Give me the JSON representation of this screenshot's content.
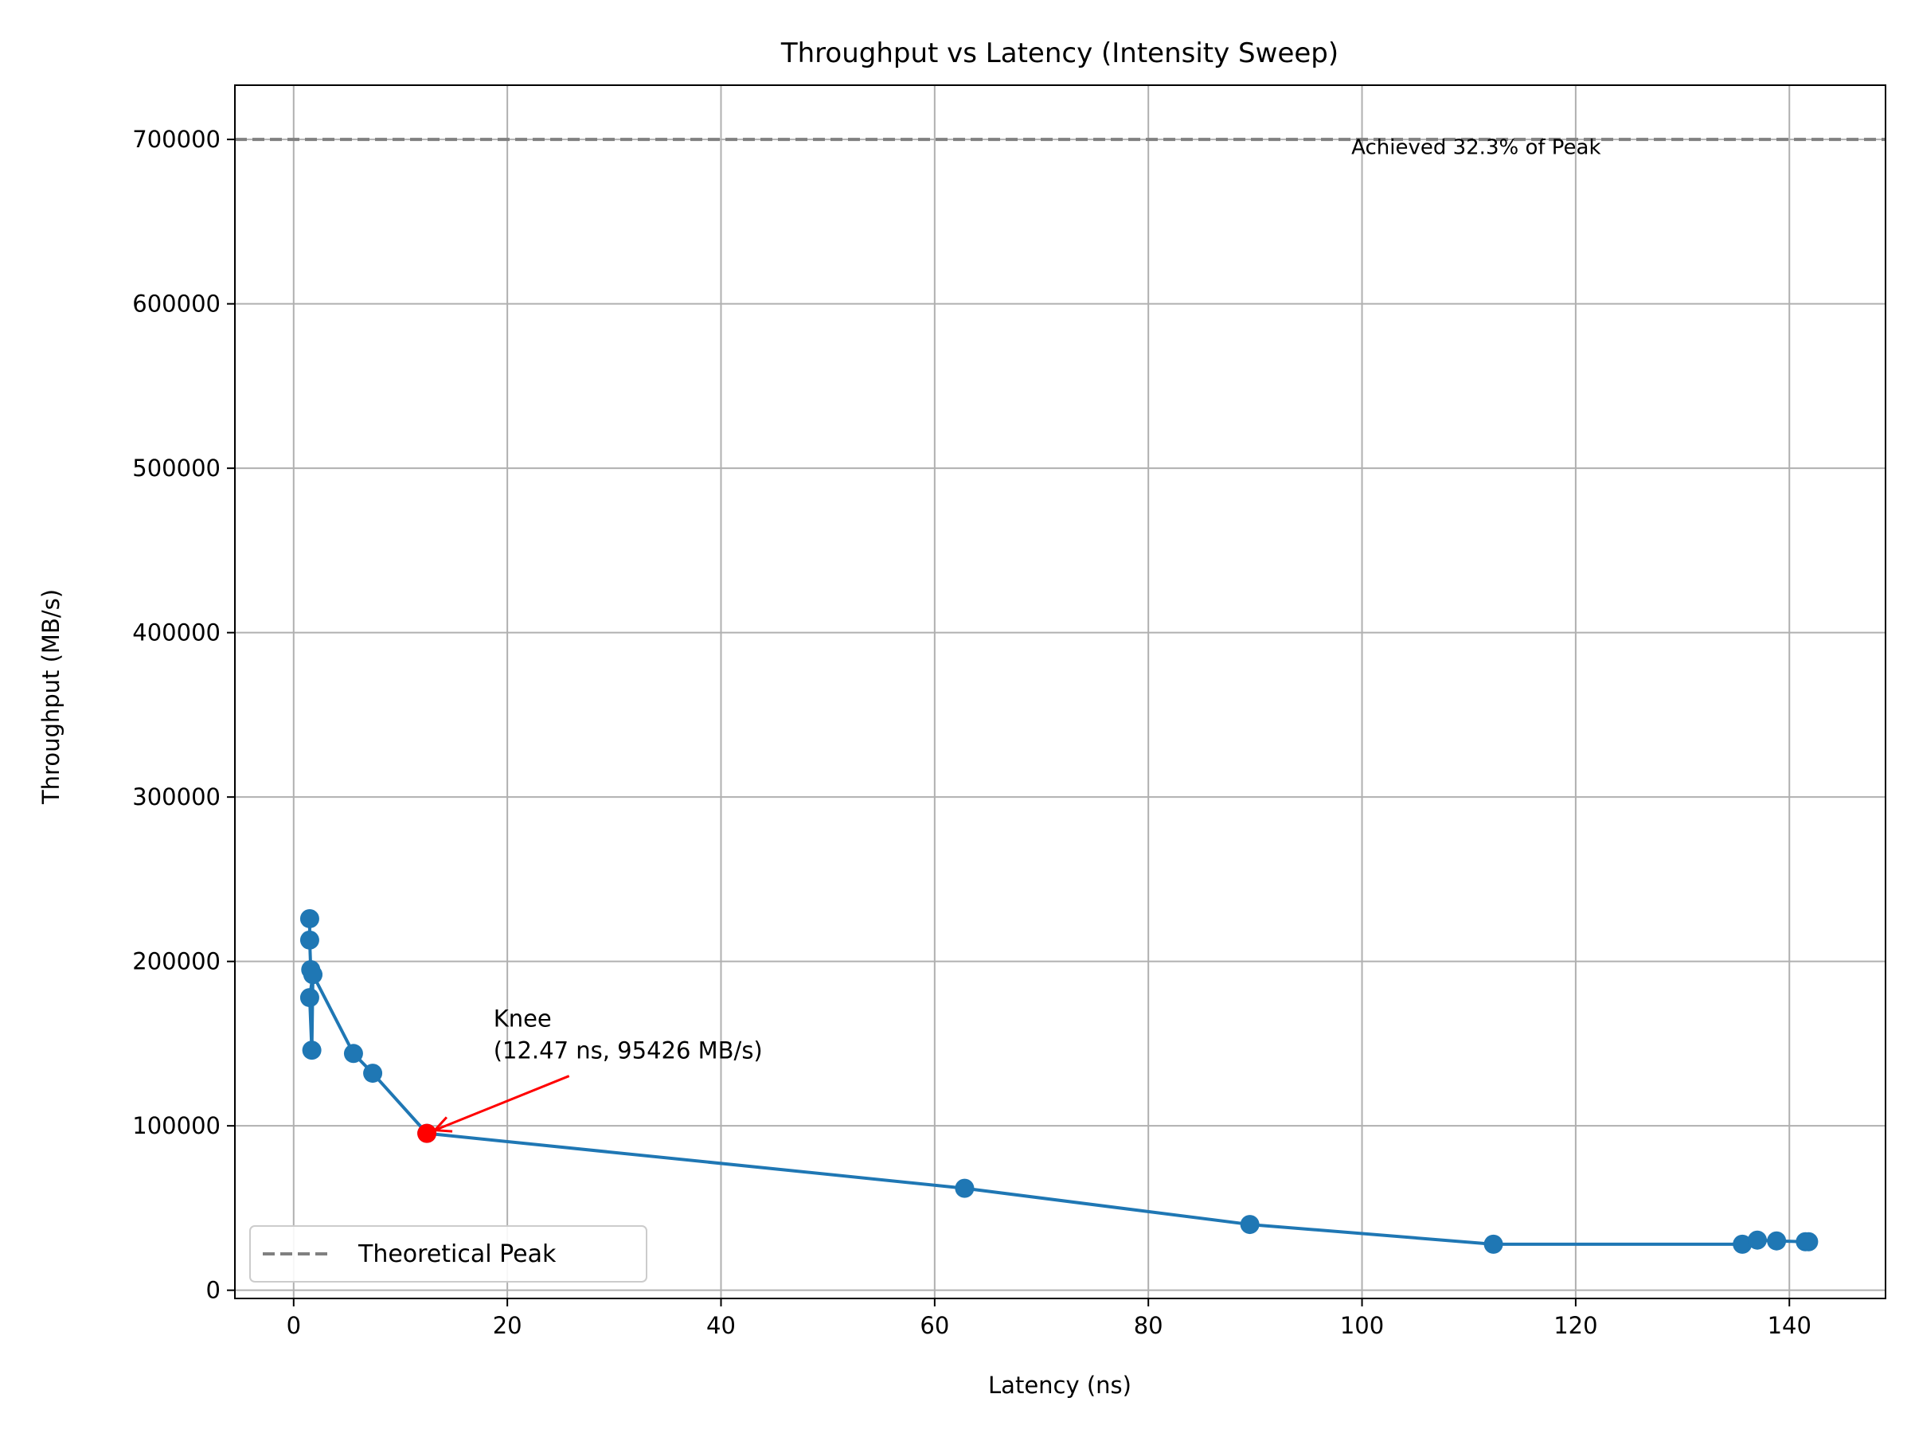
{
  "chart_data": {
    "type": "line",
    "title": "Throughput vs Latency (Intensity Sweep)",
    "xlabel": "Latency (ns)",
    "ylabel": "Throughput (MB/s)",
    "xlim": [
      -5.5,
      149
    ],
    "ylim": [
      -5000,
      733000
    ],
    "x_ticks": [
      0,
      20,
      40,
      60,
      80,
      100,
      120,
      140
    ],
    "y_ticks": [
      0,
      100000,
      200000,
      300000,
      400000,
      500000,
      600000,
      700000
    ],
    "grid": true,
    "series": [
      {
        "color": "#1f77b4",
        "marker": "circle",
        "points": [
          {
            "x": 1.5,
            "y": 226000
          },
          {
            "x": 1.5,
            "y": 213000
          },
          {
            "x": 1.6,
            "y": 195000
          },
          {
            "x": 1.8,
            "y": 192000
          },
          {
            "x": 1.5,
            "y": 178000
          },
          {
            "x": 1.7,
            "y": 146000
          },
          {
            "x": 1.8,
            "y": 192000
          },
          {
            "x": 5.6,
            "y": 144000
          },
          {
            "x": 7.4,
            "y": 132000
          },
          {
            "x": 12.47,
            "y": 95426
          },
          {
            "x": 62.8,
            "y": 62000
          },
          {
            "x": 89.5,
            "y": 40000
          },
          {
            "x": 112.3,
            "y": 28000
          },
          {
            "x": 135.6,
            "y": 28000
          },
          {
            "x": 137.0,
            "y": 30500
          },
          {
            "x": 138.8,
            "y": 30000
          },
          {
            "x": 141.5,
            "y": 29500
          },
          {
            "x": 141.8,
            "y": 29500
          }
        ]
      }
    ],
    "reference_line": {
      "name": "Theoretical Peak",
      "y": 700000,
      "style": "dashed",
      "color": "#808080"
    },
    "highlight_point": {
      "x": 12.47,
      "y": 95426,
      "color": "#ff0000"
    },
    "annotations": {
      "knee_line1": "Knee",
      "knee_line2": "(12.47 ns, 95426 MB/s)",
      "knee_text_pos": {
        "x": 18.7,
        "y": 140000
      },
      "arrow_color": "#ff0000",
      "peak_note": "Achieved 32.3% of Peak",
      "peak_note_pos": {
        "x": 99.0,
        "y": 691000
      }
    },
    "legend": {
      "placement": "lower-left",
      "entries": [
        "Theoretical Peak"
      ]
    }
  }
}
